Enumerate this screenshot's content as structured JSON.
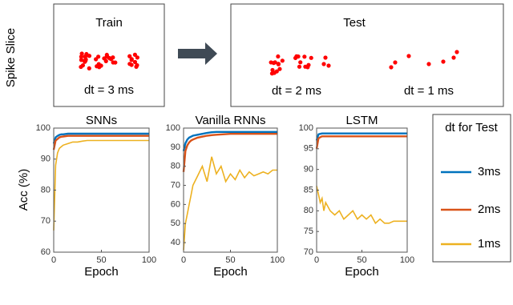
{
  "top": {
    "ylabel": "Spike Slice",
    "train": {
      "title": "Train",
      "label": "dt = 3 ms"
    },
    "test": {
      "title": "Test",
      "labels": [
        "dt = 2 ms",
        "dt = 1 ms"
      ]
    }
  },
  "chart_data": [
    {
      "type": "line",
      "title": "SNNs",
      "xlabel": "Epoch",
      "ylabel": "Acc (%)",
      "legend_title": "dt for Test",
      "xlim": [
        0,
        100
      ],
      "xticks": [
        0,
        50,
        100
      ],
      "ylim": [
        60,
        100
      ],
      "yticks": [
        60,
        70,
        80,
        90,
        100
      ],
      "x": [
        0,
        2,
        4,
        6,
        8,
        10,
        15,
        20,
        25,
        30,
        35,
        40,
        45,
        50,
        55,
        60,
        65,
        70,
        75,
        80,
        85,
        90,
        95,
        100
      ],
      "series": [
        {
          "name": "3ms",
          "color": "#0072bd",
          "values": [
            95,
            97,
            97.5,
            97.8,
            98,
            98,
            98.2,
            98.2,
            98.2,
            98.2,
            98.2,
            98.2,
            98.2,
            98.2,
            98.2,
            98.2,
            98.2,
            98.2,
            98.2,
            98.2,
            98.2,
            98.2,
            98.2,
            98.2
          ]
        },
        {
          "name": "2ms",
          "color": "#d95319",
          "values": [
            93,
            96,
            96.5,
            97,
            97.2,
            97.3,
            97.5,
            97.5,
            97.5,
            97.5,
            97.5,
            97.5,
            97.5,
            97.5,
            97.5,
            97.5,
            97.5,
            97.5,
            97.5,
            97.5,
            97.5,
            97.5,
            97.5,
            97.5
          ]
        },
        {
          "name": "1ms",
          "color": "#edb120",
          "values": [
            67,
            88,
            92,
            93.5,
            94,
            94.5,
            95,
            95.5,
            95.5,
            95.8,
            96,
            96,
            96,
            96,
            96,
            96,
            96,
            96,
            96,
            96,
            96,
            96,
            96,
            96
          ]
        }
      ]
    },
    {
      "type": "line",
      "title": "Vanilla RNNs",
      "xlabel": "Epoch",
      "xlim": [
        0,
        100
      ],
      "xticks": [
        0,
        50,
        100
      ],
      "ylim": [
        35,
        100
      ],
      "yticks": [
        40,
        50,
        60,
        70,
        80,
        90,
        100
      ],
      "x": [
        0,
        2,
        4,
        6,
        8,
        10,
        15,
        20,
        25,
        30,
        35,
        40,
        45,
        50,
        55,
        60,
        65,
        70,
        75,
        80,
        85,
        90,
        95,
        100
      ],
      "series": [
        {
          "name": "3ms",
          "color": "#0072bd",
          "values": [
            88,
            92,
            94,
            95,
            95.5,
            96,
            96.5,
            97,
            97.5,
            97.8,
            98,
            98,
            98,
            98,
            98,
            98,
            98,
            98,
            98,
            98,
            98,
            98,
            98,
            98
          ]
        },
        {
          "name": "2ms",
          "color": "#d95319",
          "values": [
            77,
            88,
            91,
            92.5,
            93.5,
            94,
            95,
            95.5,
            96,
            96.3,
            96.5,
            96.7,
            96.8,
            97,
            97,
            97,
            97,
            97,
            97,
            97,
            97,
            97,
            97,
            97
          ]
        },
        {
          "name": "1ms",
          "color": "#edb120",
          "values": [
            36,
            50,
            55,
            60,
            65,
            70,
            75,
            80,
            72,
            85,
            76,
            80,
            72,
            76,
            73,
            78,
            74,
            77,
            75,
            76,
            77,
            76,
            78,
            78
          ]
        }
      ]
    },
    {
      "type": "line",
      "title": "LSTM",
      "xlabel": "Epoch",
      "xlim": [
        0,
        100
      ],
      "xticks": [
        0,
        50,
        100
      ],
      "ylim": [
        70,
        100
      ],
      "yticks": [
        70,
        75,
        80,
        85,
        90,
        95,
        100
      ],
      "x": [
        0,
        2,
        4,
        6,
        8,
        10,
        15,
        20,
        25,
        30,
        35,
        40,
        45,
        50,
        55,
        60,
        65,
        70,
        75,
        80,
        85,
        90,
        95,
        100
      ],
      "series": [
        {
          "name": "3ms",
          "color": "#0072bd",
          "values": [
            97,
            98.5,
            98.6,
            98.7,
            98.7,
            98.7,
            98.7,
            98.7,
            98.7,
            98.7,
            98.7,
            98.7,
            98.7,
            98.7,
            98.7,
            98.7,
            98.7,
            98.7,
            98.7,
            98.7,
            98.7,
            98.7,
            98.7,
            98.7
          ]
        },
        {
          "name": "2ms",
          "color": "#d95319",
          "values": [
            95,
            97.5,
            97.8,
            98,
            98,
            98,
            98,
            98,
            98,
            98,
            98,
            98,
            98,
            98,
            98,
            98,
            98,
            98,
            98,
            98,
            98,
            98,
            98,
            98
          ]
        },
        {
          "name": "1ms",
          "color": "#edb120",
          "values": [
            86,
            84,
            82,
            83,
            80,
            82,
            80,
            79,
            80,
            78,
            79,
            80,
            78,
            79,
            78,
            79,
            77,
            78,
            77,
            77,
            77.5,
            77.5,
            77.5,
            77.5
          ]
        }
      ]
    }
  ]
}
